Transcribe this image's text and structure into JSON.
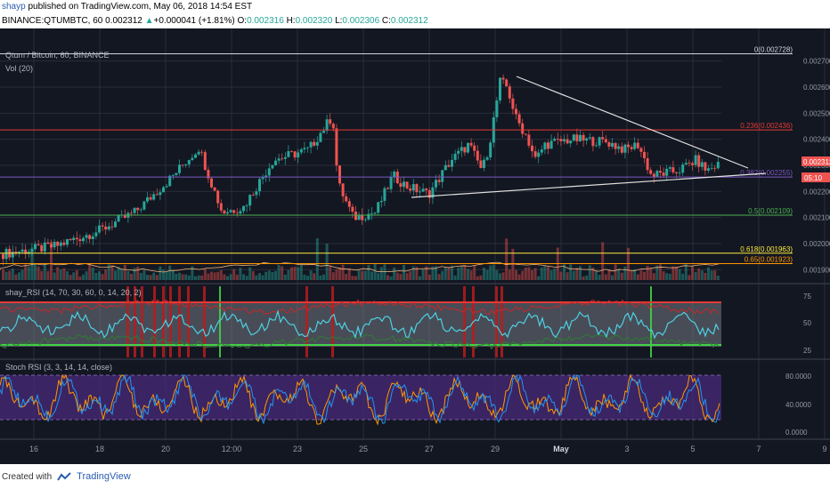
{
  "header": {
    "author": "shayp",
    "published_text": "published on TradingView.com, May 06, 2018 14:54 EST",
    "symbol_line": "BINANCE:QTUMBTC, 60",
    "last": "0.002312",
    "change": "+0.000041 (+1.81%)",
    "open_label": "O:",
    "open": "0.002316",
    "high_label": "H:",
    "high": "0.002320",
    "low_label": "L:",
    "low": "0.002306",
    "close_label": "C:",
    "close": "0.002312"
  },
  "main_pane": {
    "title": "Qtum / Bitcoin, 60, BINANCE",
    "vol_label": "Vol (20)",
    "last_price_label": "0.002312",
    "countdown": "05:10",
    "fib_levels": [
      {
        "label": "0(0.002728)",
        "price": 0.002728,
        "color": "#d1d4dc"
      },
      {
        "label": "0.236(0.002436)",
        "price": 0.002436,
        "color": "#e53935"
      },
      {
        "label": "0.382(0.002255)",
        "price": 0.002255,
        "color": "#7e57c2"
      },
      {
        "label": "0.5(0.002109)",
        "price": 0.002109,
        "color": "#4caf50"
      },
      {
        "label": "0.618(0.001963)",
        "price": 0.001963,
        "color": "#ffeb3b"
      },
      {
        "label": "0.65(0.001923)",
        "price": 0.001923,
        "color": "#ff9800"
      }
    ],
    "price_axis_ticks": [
      "0.002700",
      "0.002600",
      "0.002500",
      "0.002400",
      "0.002300",
      "0.002200",
      "0.002100",
      "0.002000",
      "0.001900"
    ]
  },
  "rsi_pane": {
    "title": "shay_RSI (14, 70, 30, 60, 0, 14, 20, 2)",
    "ticks": [
      "75",
      "50",
      "25"
    ]
  },
  "stoch_pane": {
    "title": "Stoch RSI (3, 3, 14, 14, close)",
    "ticks": [
      "80.0000",
      "40.0000",
      "0.0000"
    ]
  },
  "time_axis": [
    "16",
    "18",
    "20",
    "12:00",
    "23",
    "25",
    "27",
    "29",
    "May",
    "3",
    "5",
    "7",
    "9"
  ],
  "footer": {
    "created_with": "Created with",
    "brand": "TradingView"
  },
  "colors": {
    "background": "#131722",
    "grid": "#2a2e39",
    "up": "#26a69a",
    "down": "#ef5350",
    "rsi_line": "#4dd0e1",
    "stoch_k": "#2196f3",
    "stoch_d": "#ff9800",
    "stoch_fill": "#4a2a7a"
  }
}
